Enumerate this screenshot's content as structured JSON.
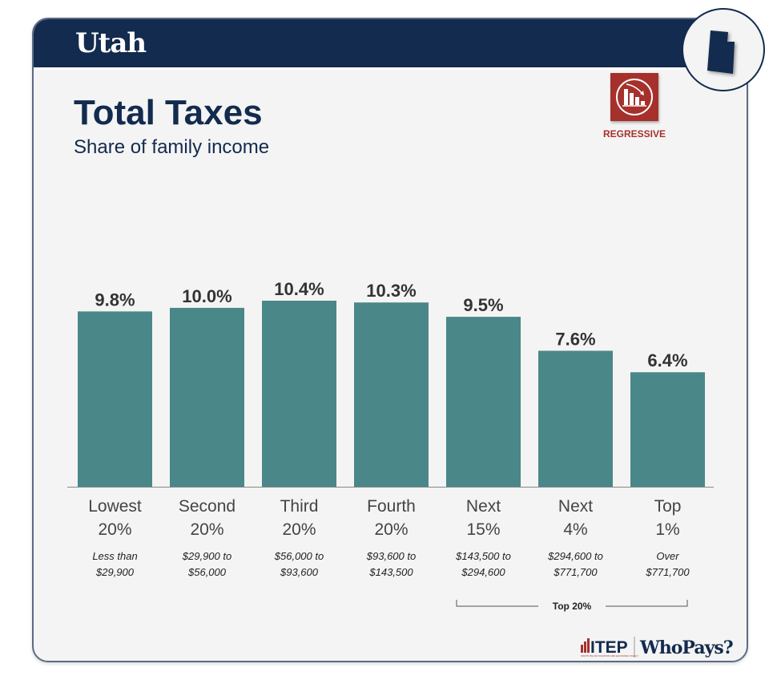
{
  "header": {
    "state": "Utah"
  },
  "title": "Total Taxes",
  "subtitle": "Share of family income",
  "badge": {
    "label": "REGRESSIVE",
    "icon": "regressive-chart-icon",
    "color": "#a6312c"
  },
  "state_icon": "utah-state-shape-icon",
  "colors": {
    "navy": "#132b4e",
    "bar": "#4a8788",
    "label": "#333333"
  },
  "chart_data": {
    "type": "bar",
    "title": "Total Taxes",
    "subtitle": "Share of family income",
    "xlabel": "",
    "ylabel": "",
    "ylim": [
      0,
      10.4
    ],
    "grid": false,
    "categories": [
      {
        "line1": "Lowest",
        "line2": "20%",
        "range1": "Less than",
        "range2": "$29,900"
      },
      {
        "line1": "Second",
        "line2": "20%",
        "range1": "$29,900 to",
        "range2": "$56,000"
      },
      {
        "line1": "Third",
        "line2": "20%",
        "range1": "$56,000 to",
        "range2": "$93,600"
      },
      {
        "line1": "Fourth",
        "line2": "20%",
        "range1": "$93,600 to",
        "range2": "$143,500"
      },
      {
        "line1": "Next",
        "line2": "15%",
        "range1": "$143,500 to",
        "range2": "$294,600"
      },
      {
        "line1": "Next",
        "line2": "4%",
        "range1": "$294,600 to",
        "range2": "$771,700"
      },
      {
        "line1": "Top",
        "line2": "1%",
        "range1": "Over",
        "range2": "$771,700"
      }
    ],
    "values": [
      9.8,
      10.0,
      10.4,
      10.3,
      9.5,
      7.6,
      6.4
    ],
    "value_labels": [
      "9.8%",
      "10.0%",
      "10.4%",
      "10.3%",
      "9.5%",
      "7.6%",
      "6.4%"
    ],
    "annotations": [
      {
        "text": "Top 20%",
        "spans_categories": [
          4,
          6
        ]
      }
    ]
  },
  "footer": {
    "org": "ITEP",
    "org_tagline": "INSTITUTE ON TAXATION AND ECONOMIC POLICY",
    "brand": "WhoPays?"
  }
}
